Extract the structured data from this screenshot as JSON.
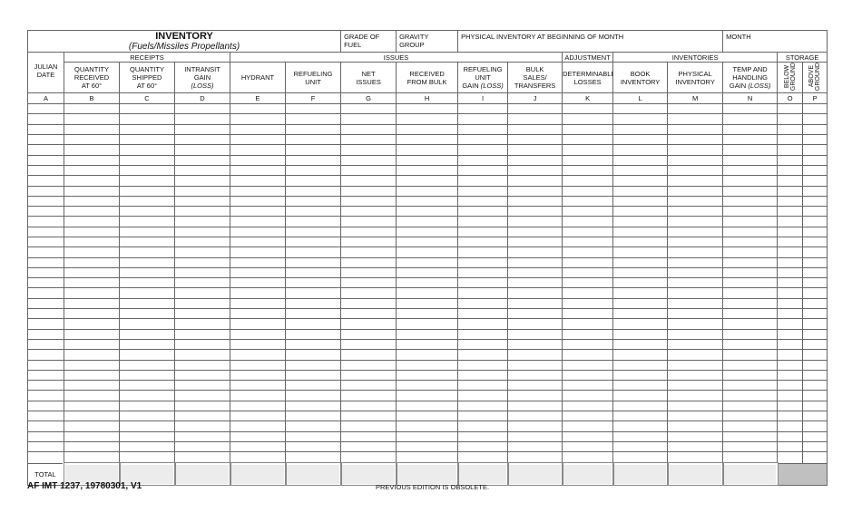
{
  "form": {
    "title": "INVENTORY",
    "subtitle": "(Fuels/Missiles Propellants)",
    "grade_of_fuel": "GRADE OF FUEL",
    "gravity_group": "GRAVITY GROUP",
    "physical_begin": "PHYSICAL INVENTORY AT BEGINNING OF MONTH",
    "month": "MONTH"
  },
  "groups": {
    "receipts": "RECEIPTS",
    "issues": "ISSUES",
    "adjustment": "ADJUSTMENT",
    "inventories": "INVENTORIES",
    "storage": "STORAGE"
  },
  "columns": [
    {
      "l1": "JULIAN",
      "l2": "DATE",
      "l3": "",
      "em": "",
      "letter": "A"
    },
    {
      "l1": "QUANTITY",
      "l2": "RECEIVED",
      "l3": "AT 60°",
      "em": "",
      "letter": "B"
    },
    {
      "l1": "QUANTITY",
      "l2": "SHIPPED",
      "l3": "AT 60°",
      "em": "",
      "letter": "C"
    },
    {
      "l1": "INTRANSIT",
      "l2": "GAIN",
      "l3": "",
      "em": "(LOSS)",
      "letter": "D"
    },
    {
      "l1": "HYDRANT",
      "l2": "",
      "l3": "",
      "em": "",
      "letter": "E"
    },
    {
      "l1": "REFUELING",
      "l2": "UNIT",
      "l3": "",
      "em": "",
      "letter": "F"
    },
    {
      "l1": "NET",
      "l2": "ISSUES",
      "l3": "",
      "em": "",
      "letter": "G"
    },
    {
      "l1": "RECEIVED",
      "l2": "FROM BULK",
      "l3": "",
      "em": "",
      "letter": "H"
    },
    {
      "l1": "REFUELING",
      "l2": "UNIT",
      "l3": "GAIN",
      "em": "(LOSS)",
      "letter": "I"
    },
    {
      "l1": "BULK",
      "l2": "SALES/",
      "l3": "TRANSFERS",
      "em": "",
      "letter": "J"
    },
    {
      "l1": "DETERMINABLE",
      "l2": "LOSSES",
      "l3": "",
      "em": "",
      "letter": "K"
    },
    {
      "l1": "BOOK",
      "l2": "INVENTORY",
      "l3": "",
      "em": "",
      "letter": "L"
    },
    {
      "l1": "PHYSICAL",
      "l2": "INVENTORY",
      "l3": "",
      "em": "",
      "letter": "M"
    },
    {
      "l1": "TEMP AND",
      "l2": "HANDLING",
      "l3": "GAIN",
      "em": "(LOSS)",
      "letter": "N"
    },
    {
      "l1": "BELOW",
      "l2": "GROUND",
      "l3": "",
      "em": "",
      "letter": "O"
    },
    {
      "l1": "ABOVE",
      "l2": "GROUND",
      "l3": "",
      "em": "",
      "letter": "P"
    }
  ],
  "total_label": "TOTAL",
  "footer": {
    "form_code": "AF IMT 1237, 19780301, V1",
    "notice": "PREVIOUS EDITION IS OBSOLETE."
  }
}
